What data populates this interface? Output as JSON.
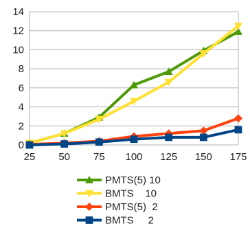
{
  "chart_data": {
    "type": "line",
    "title": "",
    "xlabel": "",
    "ylabel": "",
    "x": [
      25,
      50,
      75,
      100,
      125,
      150,
      175
    ],
    "ylim": [
      0,
      14
    ],
    "y_ticks": [
      0,
      2,
      4,
      6,
      8,
      10,
      12,
      14
    ],
    "grid": "horizontal",
    "legend_position": "bottom",
    "series": [
      {
        "name": "PMTS(5) 10",
        "color": "#4e9a06",
        "marker": "triangle",
        "values": [
          0.2,
          1.2,
          2.9,
          6.3,
          7.7,
          9.9,
          11.9
        ]
      },
      {
        "name": "BMTS    10",
        "color": "#ffe033",
        "marker": "triangle-down",
        "values": [
          0.2,
          1.2,
          2.7,
          4.6,
          6.6,
          9.6,
          12.5
        ]
      },
      {
        "name": "PMTS(5)  2",
        "color": "#ff420e",
        "marker": "diamond",
        "values": [
          0.05,
          0.2,
          0.4,
          0.9,
          1.2,
          1.5,
          2.8
        ]
      },
      {
        "name": "BMTS     2",
        "color": "#004586",
        "marker": "square",
        "values": [
          0.0,
          0.1,
          0.3,
          0.6,
          0.8,
          0.8,
          1.6
        ]
      }
    ]
  }
}
